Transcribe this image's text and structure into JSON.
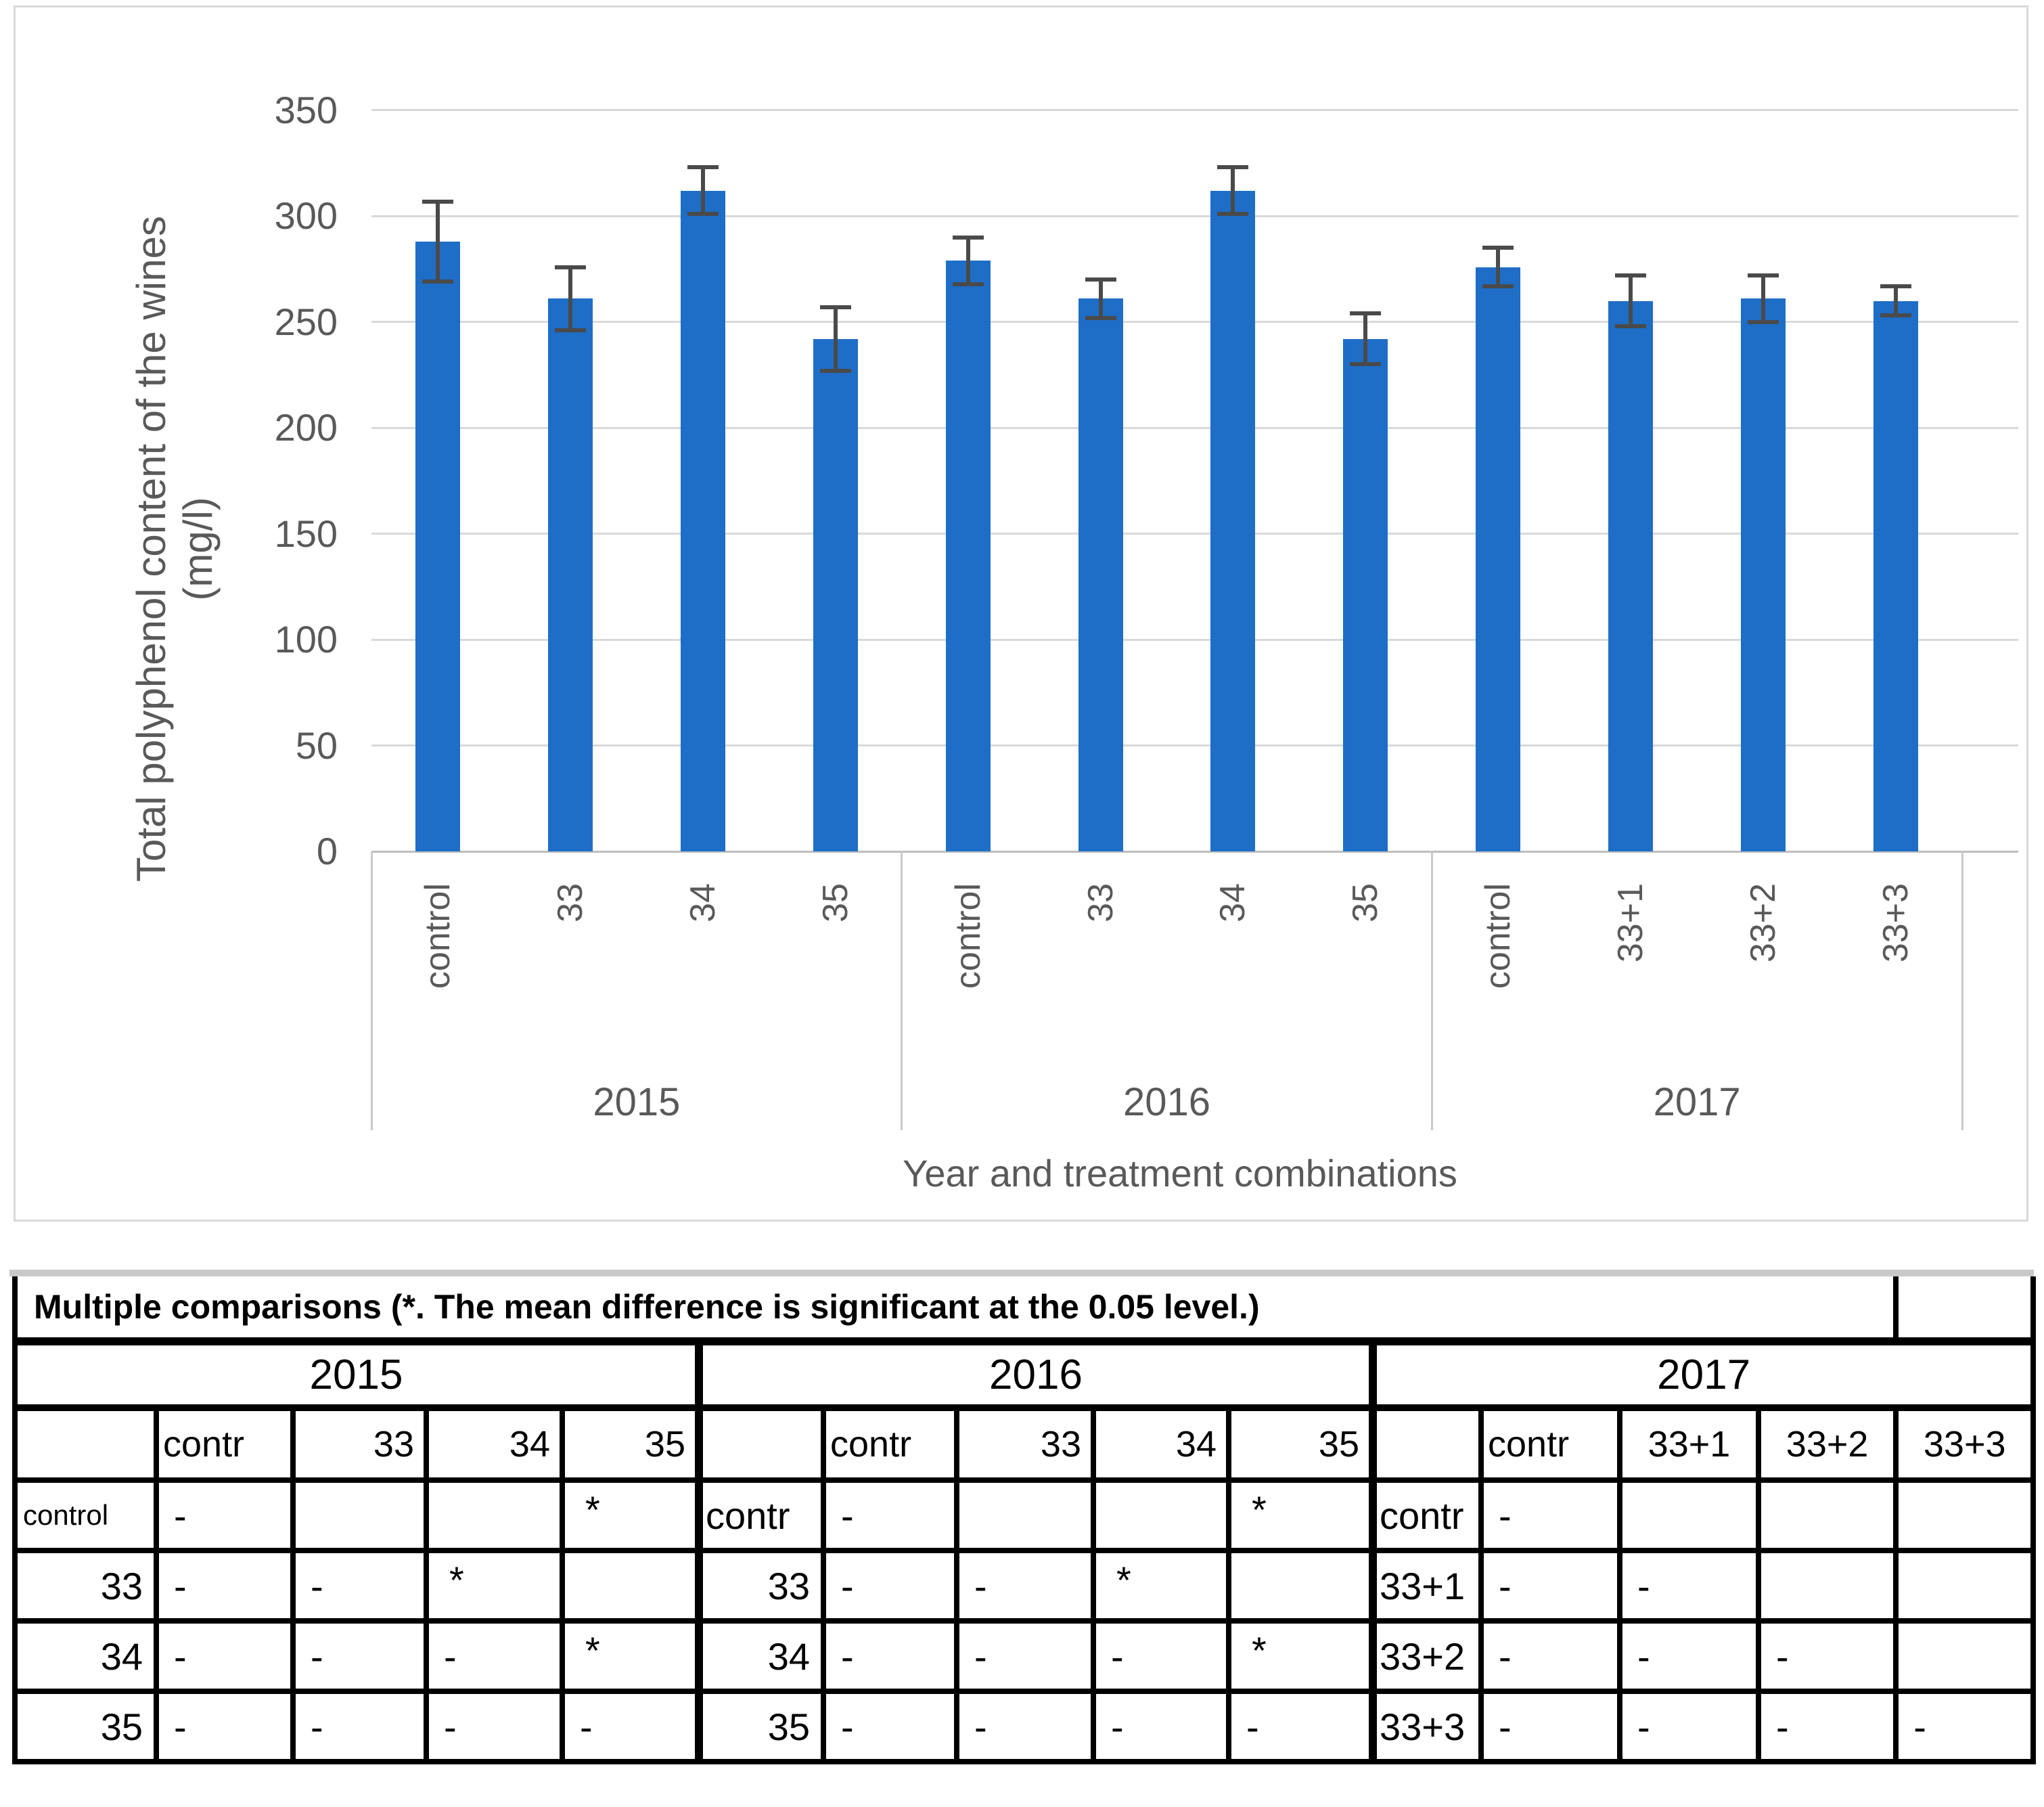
{
  "chart": {
    "y_axis_title_line1": "Total polyphenol content of the wines",
    "y_axis_title_line2": "(mg/l)",
    "x_axis_title": "Year and treatment combinations",
    "colors": {
      "bar": "#1e6ec7",
      "error": "#4a4a4a",
      "gridline": "#d9d9d9",
      "axis_line": "#bdbdbd",
      "text_gray": "#595959"
    }
  },
  "chart_data": {
    "type": "bar",
    "title": "",
    "ylabel": "Total polyphenol content of the wines (mg/l)",
    "xlabel": "Year and treatment combinations",
    "ylim": [
      0,
      350
    ],
    "yticks": [
      0,
      50,
      100,
      150,
      200,
      250,
      300,
      350
    ],
    "grid": true,
    "legend": false,
    "groups": [
      {
        "year": "2015",
        "categories": [
          "control",
          "33",
          "34",
          "35"
        ],
        "values": [
          288,
          261,
          312,
          242
        ],
        "errors": [
          19,
          15,
          11,
          15
        ]
      },
      {
        "year": "2016",
        "categories": [
          "control",
          "33",
          "34",
          "35"
        ],
        "values": [
          279,
          261,
          312,
          242
        ],
        "errors": [
          11,
          9,
          11,
          12
        ]
      },
      {
        "year": "2017",
        "categories": [
          "control",
          "33+1",
          "33+2",
          "33+3"
        ],
        "values": [
          276,
          260,
          261,
          260
        ],
        "errors": [
          9,
          12,
          11,
          7
        ]
      }
    ]
  },
  "table": {
    "title": "Multiple comparisons (*. The mean difference is significant at the 0.05 level.)",
    "sections": [
      {
        "year": "2015",
        "col_headers": [
          "contr",
          "33",
          "34",
          "35"
        ],
        "rows": [
          {
            "label": "control",
            "cells": [
              "-",
              "",
              "",
              "*"
            ]
          },
          {
            "label": "33",
            "cells": [
              "-",
              "-",
              "*",
              ""
            ]
          },
          {
            "label": "34",
            "cells": [
              "-",
              "-",
              "-",
              "*"
            ]
          },
          {
            "label": "35",
            "cells": [
              "-",
              "-",
              "-",
              "-"
            ]
          }
        ]
      },
      {
        "year": "2016",
        "col_headers": [
          "contr",
          "33",
          "34",
          "35"
        ],
        "rows": [
          {
            "label": "contr",
            "cells": [
              "-",
              "",
              "",
              "*"
            ]
          },
          {
            "label": "33",
            "cells": [
              "-",
              "-",
              "*",
              ""
            ]
          },
          {
            "label": "34",
            "cells": [
              "-",
              "-",
              "-",
              "*"
            ]
          },
          {
            "label": "35",
            "cells": [
              "-",
              "-",
              "-",
              "-"
            ]
          }
        ]
      },
      {
        "year": "2017",
        "col_headers": [
          "contr",
          "33+1",
          "33+2",
          "33+3"
        ],
        "rows": [
          {
            "label": "contr",
            "cells": [
              "-",
              "",
              "",
              ""
            ]
          },
          {
            "label": "33+1",
            "cells": [
              "-",
              "-",
              "",
              ""
            ]
          },
          {
            "label": "33+2",
            "cells": [
              "-",
              "-",
              "-",
              ""
            ]
          },
          {
            "label": "33+3",
            "cells": [
              "-",
              "-",
              "-",
              "-"
            ]
          }
        ]
      }
    ]
  }
}
